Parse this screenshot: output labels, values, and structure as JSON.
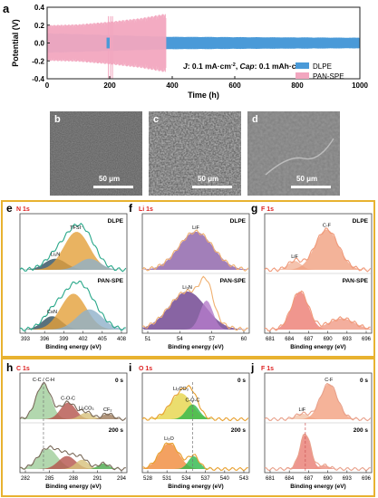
{
  "panel_a": {
    "letter": "a",
    "legend": [
      "DLPE",
      "PAN-SPE"
    ],
    "annotation": {
      "j": "J",
      "j_val": ": 0.1 mA·cm",
      "cap": "Cap",
      "cap_val": ": 0.1 mAh·cm",
      "sup": "-2"
    },
    "colors": {
      "dlpe": "#4a9ad8",
      "pan": "#f2a6bf"
    }
  },
  "sem": [
    {
      "letter": "b",
      "scale": "50 μm"
    },
    {
      "letter": "c",
      "scale": "50 μm"
    },
    {
      "letter": "d",
      "scale": "50 μm"
    }
  ],
  "xps": {
    "frame_color": "#e8b230",
    "xlabel": "Binding energy (eV)",
    "row1": [
      {
        "letter": "e",
        "element": "N 1s",
        "top_label": "DLPE",
        "bot_label": "PAN-SPE",
        "peaks_top": [
          "Li₃N",
          "TFSI⁻"
        ],
        "peaks_bot": [
          "C≡N"
        ],
        "ticks": [
          "393",
          "396",
          "399",
          "402",
          "405",
          "408"
        ]
      },
      {
        "letter": "f",
        "element": "Li 1s",
        "top_label": "DLPE",
        "bot_label": "PAN-SPE",
        "peaks_top": [
          "LiF"
        ],
        "peaks_bot": [
          "Li₃N"
        ],
        "ticks": [
          "51",
          "54",
          "57",
          "60"
        ]
      },
      {
        "letter": "g",
        "element": "F 1s",
        "top_label": "DLPE",
        "bot_label": "PAN-SPE",
        "peaks_top": [
          "LiF",
          "C-F"
        ],
        "peaks_bot": [],
        "ticks": [
          "681",
          "684",
          "687",
          "690",
          "693",
          "696"
        ]
      }
    ],
    "row2": [
      {
        "letter": "h",
        "element": "C 1s",
        "top_label": "0 s",
        "bot_label": "200 s",
        "peaks_top": [
          "C-C / C-H",
          "C-O-C",
          "Li₂CO₃",
          "CF₂"
        ],
        "peaks_bot": [],
        "ticks": [
          "282",
          "285",
          "288",
          "291",
          "294"
        ]
      },
      {
        "letter": "i",
        "element": "O 1s",
        "top_label": "0 s",
        "bot_label": "200 s",
        "peaks_top": [
          "Li₂CO₃",
          "C-O-C"
        ],
        "peaks_bot": [
          "Li₂O"
        ],
        "ticks": [
          "528",
          "531",
          "534",
          "537",
          "540",
          "543"
        ]
      },
      {
        "letter": "j",
        "element": "F 1s",
        "top_label": "0 s",
        "bot_label": "200 s",
        "peaks_top": [
          "LiF",
          "C-F"
        ],
        "peaks_bot": [],
        "ticks": [
          "681",
          "684",
          "687",
          "690",
          "693",
          "696"
        ]
      }
    ]
  },
  "chart_data": [
    {
      "type": "line",
      "title": "",
      "xlabel": "Time (h)",
      "ylabel": "Potential (V)",
      "xlim": [
        0,
        1000
      ],
      "ylim": [
        -0.4,
        0.4
      ],
      "x_ticks": [
        "0",
        "200",
        "400",
        "600",
        "800",
        "1000"
      ],
      "y_ticks": [
        "0.4",
        "0.2",
        "0.0",
        "-0.2",
        "-0.4"
      ],
      "grid": false,
      "legend_position": "bottom-right",
      "series": [
        {
          "name": "DLPE",
          "color": "#4a9ad8",
          "x_range": [
            0,
            1000
          ],
          "amplitude_envelope": [
            [
              0,
              0.11
            ],
            [
              100,
              0.1
            ],
            [
              400,
              0.07
            ],
            [
              700,
              0.065
            ],
            [
              1000,
              0.06
            ]
          ]
        },
        {
          "name": "PAN-SPE",
          "color": "#f2a6bf",
          "x_range": [
            0,
            380
          ],
          "amplitude_envelope": [
            [
              0,
              0.2
            ],
            [
              100,
              0.21
            ],
            [
              200,
              0.24
            ],
            [
              300,
              0.28
            ],
            [
              380,
              0.33
            ]
          ]
        }
      ]
    }
  ]
}
